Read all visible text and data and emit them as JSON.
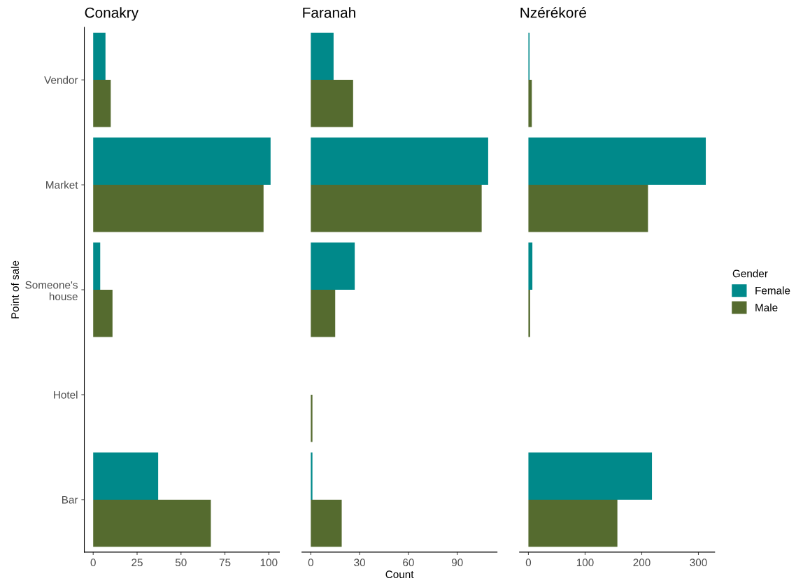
{
  "chart_data": [
    {
      "type": "bar",
      "orientation": "horizontal",
      "title": "Conakry",
      "ylabel": "Point of sale",
      "categories": [
        "Vendor",
        "Market",
        "Someone's\nhouse",
        "Hotel",
        "Bar"
      ],
      "xlim": [
        -5.05,
        106.05
      ],
      "xticks": [
        0,
        25,
        50,
        75,
        100
      ],
      "grid": false,
      "legend": "right",
      "legend_title": "Gender",
      "series": [
        {
          "name": "Female",
          "color": "#00898a",
          "values": [
            7,
            101,
            4,
            null,
            37
          ]
        },
        {
          "name": "Male",
          "color": "#556b2f",
          "values": [
            10,
            97,
            11,
            null,
            67
          ]
        }
      ]
    },
    {
      "type": "bar",
      "orientation": "horizontal",
      "title": "Faranah",
      "xlabel": "Count",
      "xlim": [
        -5.45,
        114.45
      ],
      "xticks": [
        0,
        30,
        60,
        90
      ],
      "tick_labels": "x",
      "grid": false,
      "series": [
        {
          "color": "#00898a",
          "values": [
            14,
            109,
            27,
            null,
            1
          ]
        },
        {
          "color": "#556b2f",
          "values": [
            26,
            105,
            15,
            1,
            19
          ]
        }
      ]
    },
    {
      "type": "bar",
      "orientation": "horizontal",
      "title": "Nzérékoré",
      "xlim": [
        -15.65,
        328.65
      ],
      "xticks": [
        0,
        100,
        200,
        300
      ],
      "tick_labels": "x",
      "grid": false,
      "series": [
        {
          "color": "#00898a",
          "values": [
            2,
            313,
            7,
            null,
            218
          ]
        },
        {
          "color": "#556b2f",
          "values": [
            6,
            211,
            3,
            null,
            157
          ]
        }
      ]
    }
  ]
}
